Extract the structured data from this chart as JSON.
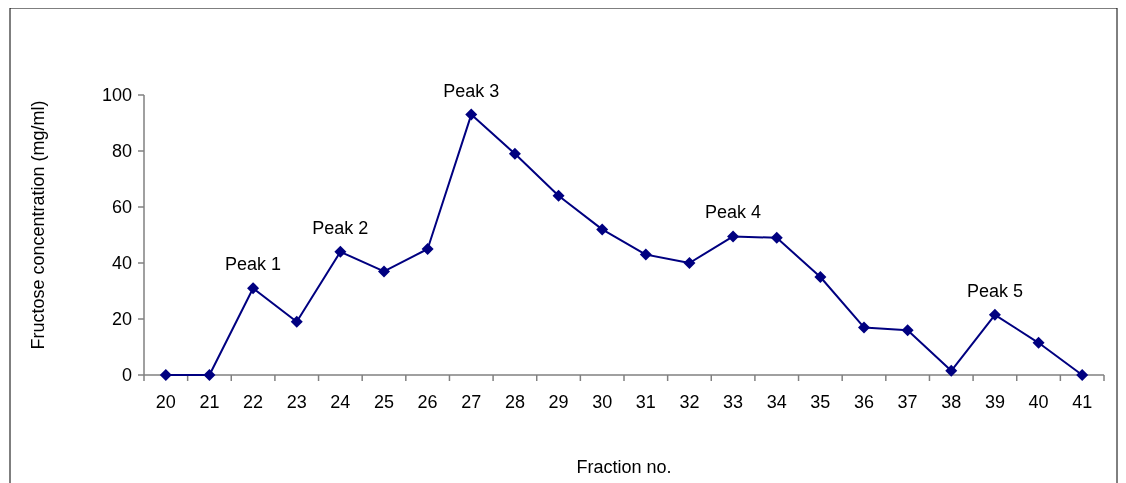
{
  "chart_data": {
    "type": "line",
    "xlabel": "Fraction no.",
    "ylabel": "Fructose concentration (mg/ml)",
    "categories": [
      "20",
      "21",
      "22",
      "23",
      "24",
      "25",
      "26",
      "27",
      "28",
      "29",
      "30",
      "31",
      "32",
      "33",
      "34",
      "35",
      "36",
      "37",
      "38",
      "39",
      "40",
      "41"
    ],
    "series": [
      {
        "color": "#000080",
        "values": [
          0,
          0,
          31,
          19,
          44,
          37,
          45,
          93,
          79,
          64,
          52,
          43,
          40,
          49.5,
          49,
          35,
          17,
          16,
          1.5,
          21.5,
          11.5,
          0
        ]
      }
    ],
    "ylim": [
      0,
      100
    ],
    "yticks": [
      0,
      20,
      40,
      60,
      80,
      100
    ],
    "grid": false,
    "marker": "diamond",
    "line_style": "solid",
    "annotations": [
      {
        "text": "Peak 1",
        "x": "22",
        "y": 31
      },
      {
        "text": "Peak 2",
        "x": "24",
        "y": 44
      },
      {
        "text": "Peak 3",
        "x": "27",
        "y": 93
      },
      {
        "text": "Peak 4",
        "x": "33",
        "y": 49.5
      },
      {
        "text": "Peak 5",
        "x": "39",
        "y": 21.5
      }
    ]
  }
}
